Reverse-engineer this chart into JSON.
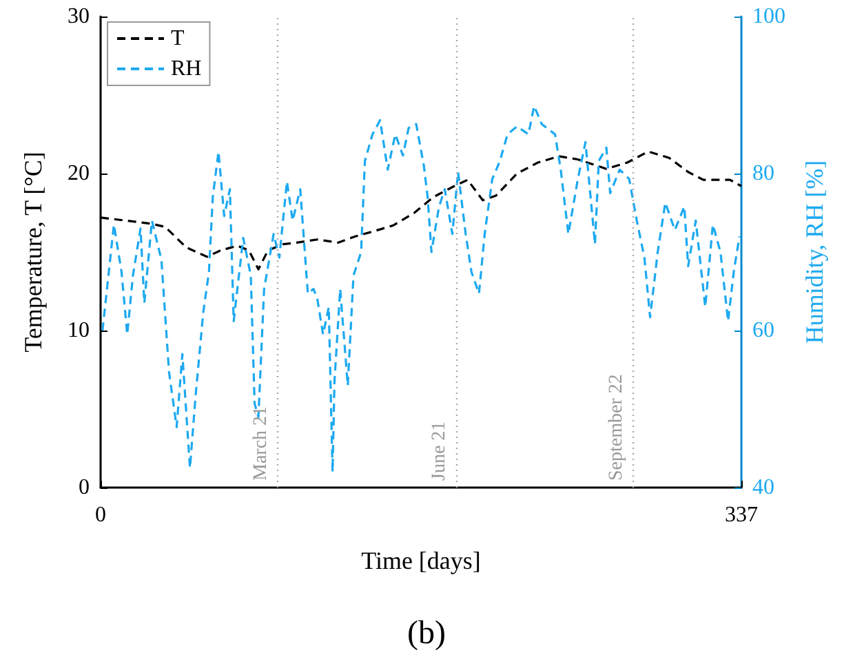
{
  "chart_data": {
    "type": "line",
    "title": "(b)",
    "xlabel": "Time [days]",
    "ylabel": "Temperature, T [°C]",
    "y2label": "Humidity, RH [%]",
    "xlim": [
      0,
      337
    ],
    "xticks": [
      0,
      337
    ],
    "ylim": [
      0,
      30
    ],
    "yticks": [
      0,
      10,
      20,
      30
    ],
    "y2lim": [
      40,
      100
    ],
    "y2ticks": [
      40,
      60,
      80,
      100
    ],
    "grid": false,
    "legend": "top left",
    "marker": "none",
    "line_style": "dashed",
    "ref_lines": [
      {
        "axis": "x",
        "value": 93,
        "label": "March 21",
        "color": "#aaaaaa",
        "line_style": "dotted"
      },
      {
        "axis": "x",
        "value": 187,
        "label": "June 21",
        "color": "#aaaaaa",
        "line_style": "dotted"
      },
      {
        "axis": "x",
        "value": 280,
        "label": "September 22",
        "color": "#aaaaaa",
        "line_style": "dotted"
      }
    ],
    "series": [
      {
        "name": "T",
        "color": "#000000",
        "x": [
          0,
          27,
          34,
          45,
          56,
          63,
          72,
          78,
          83,
          88,
          96,
          103,
          114,
          125,
          134,
          143,
          154,
          165,
          175,
          186,
          193,
          201,
          208,
          219,
          230,
          241,
          251,
          266,
          277,
          288,
          299,
          309,
          317,
          331,
          337
        ],
        "values": [
          17.2,
          16.8,
          16.6,
          15.3,
          14.7,
          15.1,
          15.4,
          15.1,
          13.9,
          15.1,
          15.5,
          15.6,
          15.8,
          15.6,
          16.0,
          16.3,
          16.7,
          17.5,
          18.5,
          19.2,
          19.6,
          18.3,
          18.6,
          20.0,
          20.7,
          21.1,
          20.9,
          20.3,
          20.7,
          21.4,
          21.0,
          20.1,
          19.6,
          19.6,
          19.2
        ]
      },
      {
        "name": "RH",
        "color": "#1ca9f0",
        "axis": "y2",
        "x": [
          1,
          7,
          11,
          14,
          17,
          21,
          23,
          27,
          32,
          36,
          40,
          43,
          47,
          50,
          54,
          57,
          59,
          62,
          65,
          68,
          70,
          75,
          79,
          81,
          83,
          86,
          91,
          94,
          98,
          101,
          105,
          109,
          112,
          114,
          117,
          120,
          122,
          123,
          126,
          130,
          133,
          137,
          139,
          143,
          147,
          151,
          155,
          159,
          162,
          166,
          170,
          172,
          174,
          178,
          181,
          185,
          188,
          192,
          195,
          199,
          202,
          206,
          210,
          214,
          219,
          225,
          228,
          232,
          239,
          242,
          246,
          251,
          255,
          260,
          262,
          266,
          268,
          273,
          278,
          282,
          286,
          289,
          293,
          297,
          302,
          307,
          309,
          313,
          318,
          322,
          326,
          330,
          333,
          336
        ],
        "values": [
          60,
          73.5,
          67.5,
          59.5,
          67,
          73,
          63.5,
          74,
          69,
          54.7,
          47.7,
          57,
          42.5,
          51.8,
          62.3,
          67.5,
          77,
          82.8,
          74.6,
          78,
          61.2,
          71.8,
          67,
          50.7,
          49,
          65.3,
          72.3,
          69.3,
          79,
          74,
          78,
          64.7,
          65.3,
          64,
          59.5,
          63,
          42,
          53.5,
          65.3,
          53,
          67,
          70,
          81.6,
          85,
          86.8,
          80.5,
          85,
          82.3,
          85.8,
          86.3,
          81,
          77,
          70,
          75.8,
          78,
          72.3,
          80.2,
          72.3,
          67.5,
          64.7,
          72.3,
          79.3,
          81.6,
          85,
          86,
          85,
          88.6,
          86.3,
          85,
          80.5,
          72.3,
          79.3,
          84,
          71,
          81.6,
          83.3,
          77.5,
          80.5,
          79.3,
          74,
          69.3,
          61.7,
          70,
          76.3,
          72.8,
          75.8,
          68.2,
          74,
          63,
          73.5,
          70,
          61.2,
          67.5,
          72
        ]
      }
    ]
  }
}
